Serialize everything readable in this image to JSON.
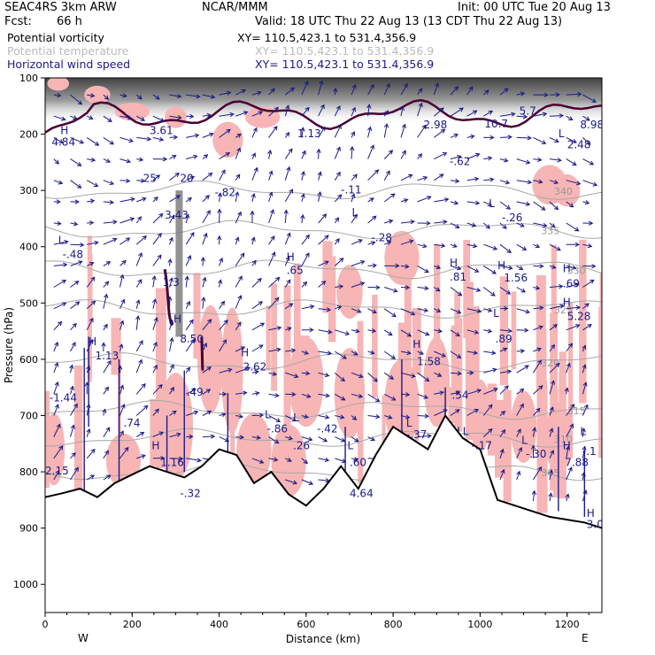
{
  "header": {
    "project": "SEAC4RS   3km ARW",
    "center": "NCAR/MMM",
    "init": "Init: 00 UTC Tue 20 Aug 13",
    "fcst_label": "Fcst:",
    "fcst_value": "66 h",
    "valid": "Valid: 18 UTC Thu 22 Aug 13 (13 CDT Thu 22 Aug 13)"
  },
  "series_rows": [
    {
      "name": "Potential vorticity",
      "xy": "XY= 110.5,423.1 to 531.4,356.9",
      "color": "#000000"
    },
    {
      "name": "Potential temperature",
      "xy": "XY= 110.5,423.1 to 531.4,356.9",
      "color": "#bbbbbb"
    },
    {
      "name": "Horizontal wind speed",
      "xy": "XY= 110.5,423.1 to 531.4,356.9",
      "color": "#1a1a8a"
    }
  ],
  "colors": {
    "pv_fill": "#f7b5b5",
    "theta": "#a8a8a8",
    "wind": "#1a1a8a",
    "pv_contour": "#4a0033",
    "terrain": "#000000"
  },
  "chart_data": {
    "type": "cross-section",
    "xlabel": "Distance (km)",
    "ylabel": "Pressure (hPa)",
    "xlim": [
      0,
      1280
    ],
    "ylim": [
      1050,
      100
    ],
    "xticks": [
      "0",
      "200",
      "400",
      "600",
      "800",
      "1000",
      "1200"
    ],
    "xtick_values": [
      0,
      200,
      400,
      600,
      800,
      1000,
      1200
    ],
    "yticks": [
      "100",
      "200",
      "300",
      "400",
      "500",
      "600",
      "700",
      "800",
      "900",
      "1000"
    ],
    "ytick_values": [
      100,
      200,
      300,
      400,
      500,
      600,
      700,
      800,
      900,
      1000
    ],
    "end_labels": {
      "left": "W",
      "right": "E"
    },
    "terrain": {
      "x": [
        0,
        40,
        80,
        120,
        160,
        200,
        240,
        280,
        320,
        360,
        400,
        440,
        480,
        520,
        560,
        600,
        640,
        680,
        720,
        760,
        800,
        840,
        880,
        920,
        960,
        1000,
        1040,
        1080,
        1120,
        1160,
        1200,
        1240,
        1280
      ],
      "p": [
        845,
        838,
        830,
        845,
        820,
        805,
        790,
        800,
        810,
        790,
        760,
        770,
        820,
        800,
        840,
        860,
        830,
        790,
        830,
        770,
        720,
        740,
        760,
        700,
        740,
        760,
        850,
        860,
        870,
        880,
        885,
        890,
        900
      ]
    },
    "theta_contours": [
      {
        "label": "305",
        "p_level": 800
      },
      {
        "label": "310",
        "p_level": 740
      },
      {
        "label": "315",
        "p_level": 690
      },
      {
        "label": "320",
        "p_level": 605
      },
      {
        "label": "325",
        "p_level": 510
      },
      {
        "label": "330",
        "p_level": 440
      },
      {
        "label": "335",
        "p_level": 370
      },
      {
        "label": "340",
        "p_level": 300
      }
    ],
    "annotations": [
      {
        "text": "H",
        "x": 35,
        "p": 200
      },
      {
        "text": "4.84",
        "x": 15,
        "p": 220
      },
      {
        "text": "3.61",
        "x": 240,
        "p": 200
      },
      {
        "text": "1.13",
        "x": 580,
        "p": 205
      },
      {
        "text": "2.98",
        "x": 870,
        "p": 190
      },
      {
        "text": "10.7",
        "x": 1010,
        "p": 188
      },
      {
        "text": "5.7",
        "x": 1090,
        "p": 165
      },
      {
        "text": "8.98",
        "x": 1230,
        "p": 190
      },
      {
        "text": "2.48",
        "x": 1200,
        "p": 225
      },
      {
        "text": "L",
        "x": 1180,
        "p": 205
      },
      {
        "text": "25",
        "x": 225,
        "p": 285
      },
      {
        "text": "20",
        "x": 310,
        "p": 285
      },
      {
        "text": "-.82",
        "x": 390,
        "p": 310
      },
      {
        "text": "-.11",
        "x": 680,
        "p": 305
      },
      {
        "text": "-.62",
        "x": 930,
        "p": 255
      },
      {
        "text": "-.26",
        "x": 1050,
        "p": 355
      },
      {
        "text": "L",
        "x": 1020,
        "p": 330
      },
      {
        "text": "3.43",
        "x": 275,
        "p": 350
      },
      {
        "text": "L",
        "x": 705,
        "p": 345
      },
      {
        "text": "-.28",
        "x": 750,
        "p": 390
      },
      {
        "text": "L",
        "x": 30,
        "p": 395
      },
      {
        "text": "-.48",
        "x": 40,
        "p": 420
      },
      {
        "text": "H",
        "x": 555,
        "p": 425
      },
      {
        "text": ".65",
        "x": 555,
        "p": 448
      },
      {
        "text": "H",
        "x": 930,
        "p": 435
      },
      {
        "text": ".81",
        "x": 930,
        "p": 460
      },
      {
        "text": "H",
        "x": 1040,
        "p": 440
      },
      {
        "text": "1.56",
        "x": 1055,
        "p": 462
      },
      {
        "text": "H",
        "x": 1190,
        "p": 445
      },
      {
        "text": ".69",
        "x": 1190,
        "p": 472
      },
      {
        "text": "1.3",
        "x": 270,
        "p": 470
      },
      {
        "text": "H",
        "x": 1190,
        "p": 505
      },
      {
        "text": "5.28",
        "x": 1200,
        "p": 530
      },
      {
        "text": "8.50",
        "x": 310,
        "p": 570
      },
      {
        "text": "H",
        "x": 295,
        "p": 535
      },
      {
        "text": "L",
        "x": 1030,
        "p": 525
      },
      {
        "text": ".89",
        "x": 1035,
        "p": 570
      },
      {
        "text": "H",
        "x": 100,
        "p": 575
      },
      {
        "text": "1.13",
        "x": 115,
        "p": 600
      },
      {
        "text": "H",
        "x": 845,
        "p": 580
      },
      {
        "text": "1.58",
        "x": 855,
        "p": 610
      },
      {
        "text": "H",
        "x": 450,
        "p": 595
      },
      {
        "text": "2.62",
        "x": 455,
        "p": 620
      },
      {
        "text": "-1.44",
        "x": 10,
        "p": 675
      },
      {
        "text": ".49",
        "x": 325,
        "p": 665
      },
      {
        "text": ".74",
        "x": 180,
        "p": 720
      },
      {
        "text": ".54",
        "x": 935,
        "p": 670
      },
      {
        "text": "L",
        "x": 505,
        "p": 705
      },
      {
        "text": "-.86",
        "x": 510,
        "p": 730
      },
      {
        "text": "L",
        "x": 570,
        "p": 710
      },
      {
        "text": "-.42",
        "x": 625,
        "p": 730
      },
      {
        "text": ".26",
        "x": 570,
        "p": 760
      },
      {
        "text": "L",
        "x": 830,
        "p": 720
      },
      {
        "text": "-.37",
        "x": 830,
        "p": 740
      },
      {
        "text": "L",
        "x": 960,
        "p": 735
      },
      {
        "text": "-.17",
        "x": 980,
        "p": 760
      },
      {
        "text": "L",
        "x": 1230,
        "p": 735
      },
      {
        "text": "-.1",
        "x": 1235,
        "p": 770
      },
      {
        "text": "H",
        "x": 245,
        "p": 760
      },
      {
        "text": "1.16",
        "x": 265,
        "p": 790
      },
      {
        "text": "L",
        "x": 695,
        "p": 760
      },
      {
        "text": ".60",
        "x": 700,
        "p": 790
      },
      {
        "text": "L",
        "x": 1095,
        "p": 750
      },
      {
        "text": "-.30",
        "x": 1105,
        "p": 775
      },
      {
        "text": "H",
        "x": 1190,
        "p": 760
      },
      {
        "text": "7.88",
        "x": 1195,
        "p": 790
      },
      {
        "text": "2.15",
        "x": 0,
        "p": 805
      },
      {
        "text": "-.32",
        "x": 310,
        "p": 845
      },
      {
        "text": "4.64",
        "x": 700,
        "p": 845
      },
      {
        "text": "H",
        "x": 1245,
        "p": 880
      },
      {
        "text": "3.0",
        "x": 1245,
        "p": 900
      }
    ]
  }
}
